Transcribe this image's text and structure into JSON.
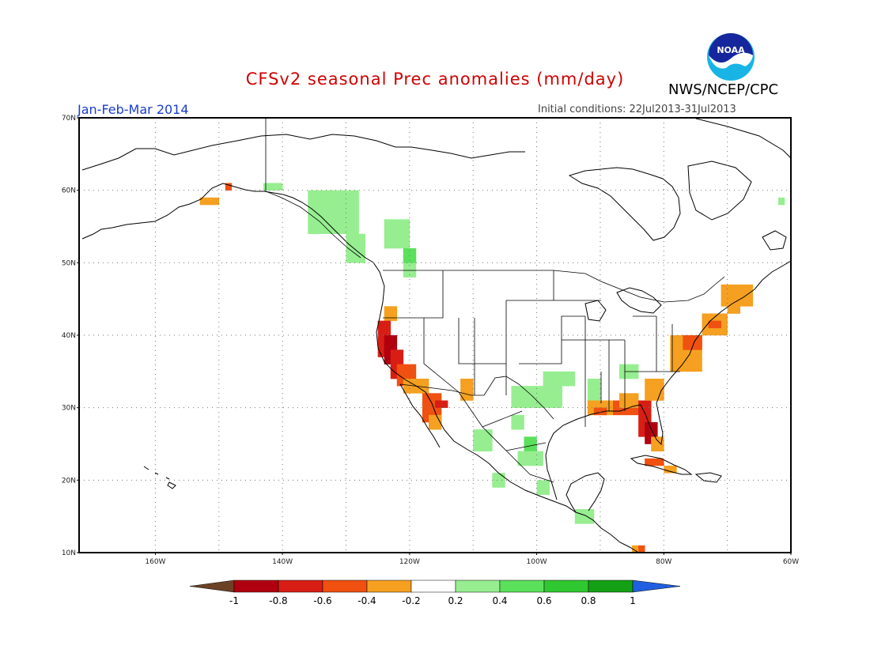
{
  "title": "CFSv2 seasonal Prec anomalies (mm/day)",
  "period": "Jan-Feb-Mar 2014",
  "initial_conditions": "Initial conditions: 22Jul2013-31Jul2013",
  "agency": "NWS/NCEP/CPC",
  "logo_text": "NOAA",
  "lat_labels": [
    "70N",
    "60N",
    "50N",
    "40N",
    "30N",
    "20N",
    "10N"
  ],
  "lon_labels": [
    "160W",
    "140W",
    "120W",
    "100W",
    "80W",
    "60W"
  ],
  "colorbar": {
    "labels": [
      "-1",
      "-0.8",
      "-0.6",
      "-0.4",
      "-0.2",
      "0.2",
      "0.4",
      "0.6",
      "0.8",
      "1"
    ],
    "colors": [
      "#6b4226",
      "#b00010",
      "#d81e14",
      "#f05010",
      "#f5a020",
      "#ffffff",
      "#96ee90",
      "#5be05b",
      "#30c830",
      "#14a014",
      "#2060e0"
    ]
  },
  "map": {
    "region": "North America",
    "lat_range": [
      10,
      70
    ],
    "lon_range": [
      -172,
      -60
    ],
    "projection": "cylindrical equidistant",
    "grid": true
  },
  "anomaly_regions": [
    {
      "name": "Southern Alaska",
      "value": "-0.4 to -0.6"
    },
    {
      "name": "California coast",
      "value": "-0.4 to -0.8"
    },
    {
      "name": "Baja California",
      "value": "-0.4 to -0.6"
    },
    {
      "name": "Arizona",
      "value": "-0.2 to -0.4"
    },
    {
      "name": "Florida",
      "value": "-0.4 to -0.8"
    },
    {
      "name": "Gulf coast",
      "value": "-0.2 to -0.4"
    },
    {
      "name": "US Northeast coast",
      "value": "-0.2 to -0.4"
    },
    {
      "name": "Cuba",
      "value": "-0.2 to -0.6"
    },
    {
      "name": "Alaska panhandle and British Columbia",
      "value": "0.2 to 0.4"
    },
    {
      "name": "Texas and Oklahoma",
      "value": "0.2 to 0.4"
    },
    {
      "name": "Western Mexico",
      "value": "0.2 to 0.4"
    },
    {
      "name": "Gulf of Mexico west",
      "value": "0.2 to 0.4"
    },
    {
      "name": "Central America",
      "value": "0.2 to 0.4"
    }
  ]
}
